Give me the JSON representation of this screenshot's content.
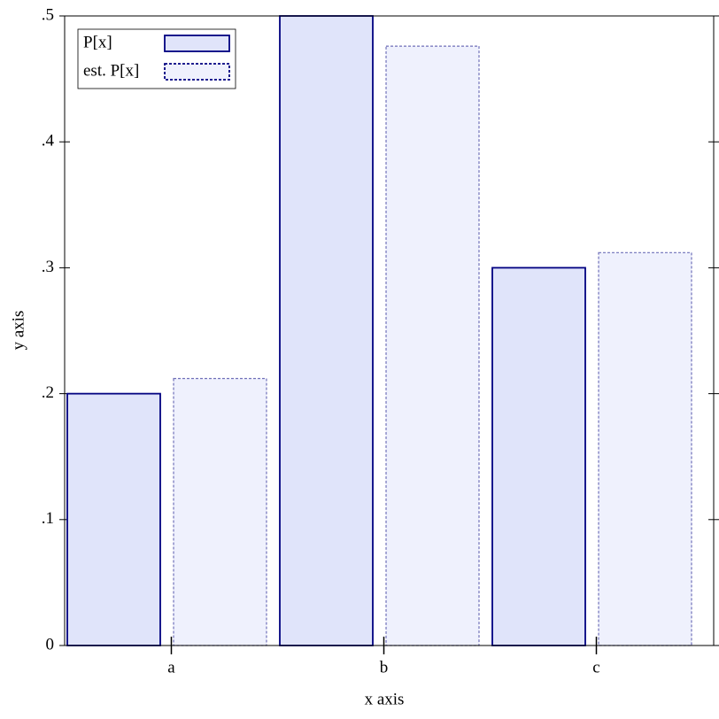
{
  "chart_data": {
    "type": "bar",
    "xlabel": "x axis",
    "ylabel": "y axis",
    "categories": [
      "a",
      "b",
      "c"
    ],
    "series": [
      {
        "name": "P[x]",
        "color": "#e0e4fa",
        "edgecolor": "#000080",
        "linestyle": "solid",
        "values": [
          0.2,
          0.5,
          0.3
        ]
      },
      {
        "name": "est. P[x]",
        "color": "#eff1fd",
        "edgecolor": "#000080",
        "linestyle": "dashed",
        "values": [
          0.212,
          0.476,
          0.312
        ]
      }
    ],
    "ylim": [
      0,
      0.5
    ],
    "yticks": [
      0,
      {
        "value": 0.1,
        "label": ".1"
      },
      {
        "value": 0.2,
        "label": ".2"
      },
      {
        "value": 0.3,
        "label": ".3"
      },
      {
        "value": 0.4,
        "label": ".4"
      },
      {
        "value": 0.5,
        "label": ".5"
      }
    ],
    "legend": "upper left"
  }
}
